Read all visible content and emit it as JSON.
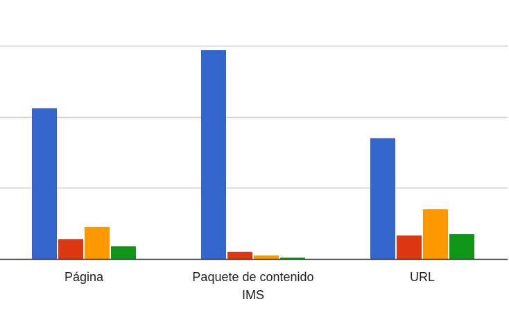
{
  "chart_data": {
    "type": "bar",
    "categories": [
      "Página",
      "Paquete de contenido IMS",
      "URL"
    ],
    "category_lines": [
      [
        "Página"
      ],
      [
        "Paquete de contenido",
        "IMS"
      ],
      [
        "URL"
      ]
    ],
    "series": [
      {
        "values": [
          212,
          294,
          170
        ]
      },
      {
        "values": [
          28,
          10,
          33
        ]
      },
      {
        "values": [
          45,
          5,
          70
        ]
      },
      {
        "values": [
          18,
          2,
          35
        ]
      }
    ],
    "ylim": [
      0,
      300
    ],
    "y_gridlines": [
      100,
      200,
      300
    ],
    "grid": true,
    "legend": "none",
    "colors": {
      "series": [
        "#3366cc",
        "#dc3912",
        "#ff9900",
        "#109618"
      ],
      "grid": "#cccccc",
      "axis": "#333333",
      "text": "#222222"
    }
  }
}
